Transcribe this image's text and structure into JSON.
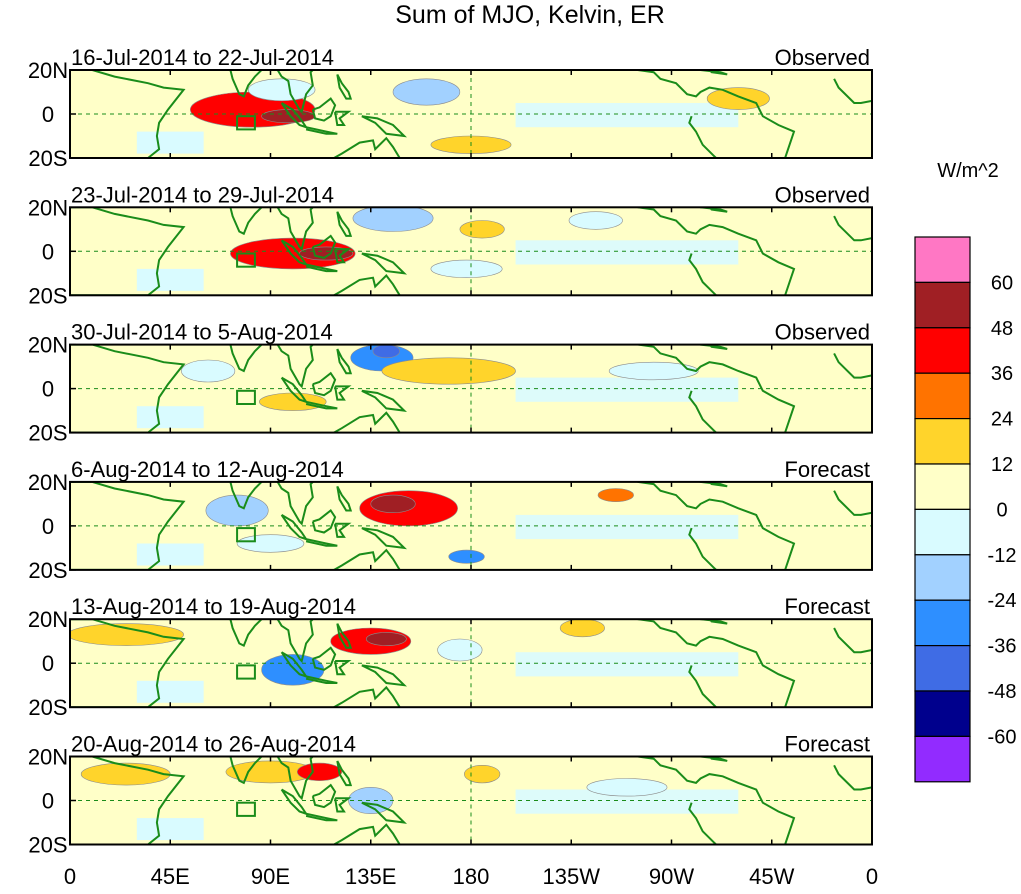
{
  "chart_data": {
    "type": "heatmap",
    "title": "Sum of MJO, Kelvin, ER",
    "x_ticks": [
      "0",
      "45E",
      "90E",
      "135E",
      "180",
      "135W",
      "90W",
      "45W",
      "0"
    ],
    "x_tick_degrees": [
      0,
      45,
      90,
      135,
      180,
      225,
      270,
      315,
      360
    ],
    "y_ticks": [
      "20N",
      "0",
      "20S"
    ],
    "y_tick_degrees": [
      20,
      0,
      -20
    ],
    "xlim": [
      0,
      360
    ],
    "ylim": [
      -20,
      20
    ],
    "colorbar": {
      "units": "W/m^2",
      "labels": [
        "60",
        "48",
        "36",
        "24",
        "12",
        "0",
        "-12",
        "-24",
        "-36",
        "-48",
        "-60"
      ],
      "colors": [
        "#ff77c4",
        "#a01f24",
        "#ff0000",
        "#ff7300",
        "#ffd42b",
        "#ffffc8",
        "#d9fbff",
        "#a2d1ff",
        "#2e8fff",
        "#3f6ce5",
        "#00008d",
        "#922bff"
      ]
    },
    "panels": [
      {
        "period": "16-Jul-2014 to 22-Jul-2014",
        "status": "Observed",
        "features": [
          {
            "lon": 82,
            "lat": 2,
            "rx": 28,
            "ry": 8,
            "level": 3
          },
          {
            "lon": 98,
            "lat": -1,
            "rx": 12,
            "ry": 3,
            "level": 4
          },
          {
            "lon": 180,
            "lat": -14,
            "rx": 18,
            "ry": 4,
            "level": 1
          },
          {
            "lon": 160,
            "lat": 10,
            "rx": 15,
            "ry": 6,
            "level": -2
          },
          {
            "lon": 300,
            "lat": 7,
            "rx": 14,
            "ry": 5,
            "level": 1
          },
          {
            "lon": 95,
            "lat": 11,
            "rx": 15,
            "ry": 5,
            "level": -1
          }
        ]
      },
      {
        "period": "23-Jul-2014 to 29-Jul-2014",
        "status": "Observed",
        "features": [
          {
            "lon": 100,
            "lat": -1,
            "rx": 28,
            "ry": 7,
            "level": 3
          },
          {
            "lon": 115,
            "lat": -1,
            "rx": 12,
            "ry": 3,
            "level": 4
          },
          {
            "lon": 145,
            "lat": 15,
            "rx": 18,
            "ry": 6,
            "level": -2
          },
          {
            "lon": 185,
            "lat": 10,
            "rx": 10,
            "ry": 4,
            "level": 1
          },
          {
            "lon": 178,
            "lat": -8,
            "rx": 16,
            "ry": 4,
            "level": -1
          },
          {
            "lon": 236,
            "lat": 14,
            "rx": 12,
            "ry": 4,
            "level": -1
          }
        ]
      },
      {
        "period": "30-Jul-2014 to 5-Aug-2014",
        "status": "Observed",
        "features": [
          {
            "lon": 140,
            "lat": 14,
            "rx": 14,
            "ry": 6,
            "level": -3
          },
          {
            "lon": 142,
            "lat": 17,
            "rx": 6,
            "ry": 3,
            "level": -4
          },
          {
            "lon": 170,
            "lat": 8,
            "rx": 30,
            "ry": 6,
            "level": 1
          },
          {
            "lon": 100,
            "lat": -6,
            "rx": 15,
            "ry": 4,
            "level": 1
          },
          {
            "lon": 62,
            "lat": 8,
            "rx": 12,
            "ry": 5,
            "level": -1
          },
          {
            "lon": 262,
            "lat": 8,
            "rx": 20,
            "ry": 4,
            "level": -1
          }
        ]
      },
      {
        "period": "6-Aug-2014 to 12-Aug-2014",
        "status": "Forecast",
        "features": [
          {
            "lon": 152,
            "lat": 8,
            "rx": 22,
            "ry": 8,
            "level": 3
          },
          {
            "lon": 145,
            "lat": 10,
            "rx": 10,
            "ry": 4,
            "level": 4
          },
          {
            "lon": 75,
            "lat": 7,
            "rx": 14,
            "ry": 7,
            "level": -2
          },
          {
            "lon": 178,
            "lat": -14,
            "rx": 8,
            "ry": 3,
            "level": -3
          },
          {
            "lon": 245,
            "lat": 14,
            "rx": 8,
            "ry": 3,
            "level": 2
          },
          {
            "lon": 90,
            "lat": -8,
            "rx": 15,
            "ry": 4,
            "level": -1
          }
        ]
      },
      {
        "period": "13-Aug-2014 to 19-Aug-2014",
        "status": "Forecast",
        "features": [
          {
            "lon": 135,
            "lat": 10,
            "rx": 18,
            "ry": 6,
            "level": 3
          },
          {
            "lon": 142,
            "lat": 11,
            "rx": 9,
            "ry": 3,
            "level": 4
          },
          {
            "lon": 100,
            "lat": -3,
            "rx": 14,
            "ry": 7,
            "level": -3
          },
          {
            "lon": 25,
            "lat": 13,
            "rx": 26,
            "ry": 5,
            "level": 1
          },
          {
            "lon": 175,
            "lat": 6,
            "rx": 10,
            "ry": 5,
            "level": -1
          },
          {
            "lon": 230,
            "lat": 16,
            "rx": 10,
            "ry": 4,
            "level": 1
          }
        ]
      },
      {
        "period": "20-Aug-2014 to 26-Aug-2014",
        "status": "Forecast",
        "features": [
          {
            "lon": 90,
            "lat": 13,
            "rx": 20,
            "ry": 5,
            "level": 1
          },
          {
            "lon": 112,
            "lat": 13,
            "rx": 10,
            "ry": 4,
            "level": 3
          },
          {
            "lon": 135,
            "lat": 0,
            "rx": 10,
            "ry": 6,
            "level": -2
          },
          {
            "lon": 25,
            "lat": 12,
            "rx": 20,
            "ry": 5,
            "level": 1
          },
          {
            "lon": 185,
            "lat": 12,
            "rx": 8,
            "ry": 4,
            "level": 1
          },
          {
            "lon": 250,
            "lat": 6,
            "rx": 18,
            "ry": 4,
            "level": -1
          }
        ]
      }
    ]
  }
}
